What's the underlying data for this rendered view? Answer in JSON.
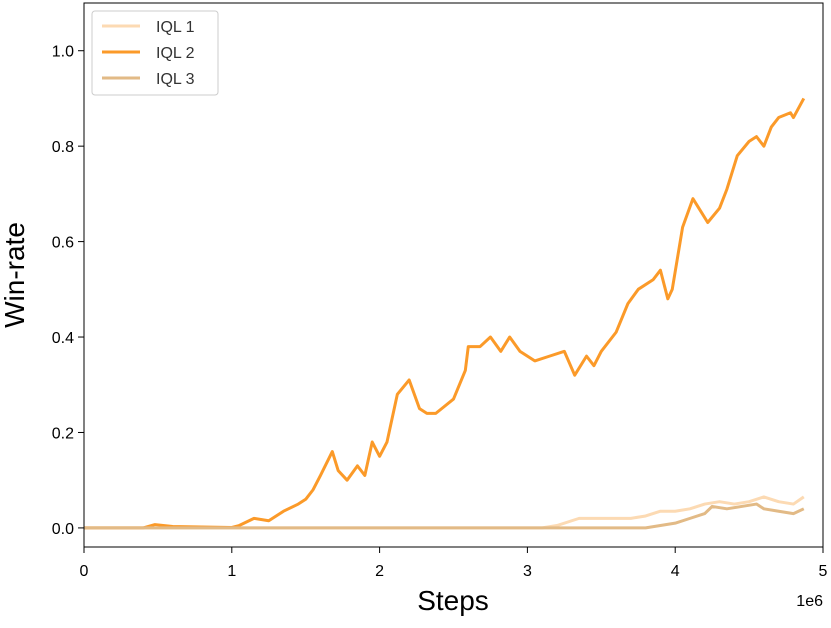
{
  "chart_data": {
    "type": "line",
    "xlabel": "Steps",
    "ylabel": "Win-rate",
    "x_offset_label": "1e6",
    "xlim": [
      0,
      5
    ],
    "ylim": [
      -0.04,
      1.1
    ],
    "xticks": [
      0,
      1,
      2,
      3,
      4,
      5
    ],
    "yticks": [
      {
        "value": 0,
        "label": "0.0"
      },
      0.2,
      0.4,
      0.6,
      0.8,
      {
        "value": 1,
        "label": "1.0"
      }
    ],
    "legend": "upper left",
    "grid": false,
    "series": [
      {
        "name": "IQL 1",
        "color": "#fcdab3",
        "x": [
          0,
          3.1,
          3.2,
          3.3,
          3.35,
          3.5,
          3.6,
          3.7,
          3.8,
          3.9,
          4.0,
          4.1,
          4.2,
          4.3,
          4.4,
          4.5,
          4.6,
          4.7,
          4.8,
          4.87
        ],
        "values": [
          0,
          0,
          0.005,
          0.015,
          0.02,
          0.02,
          0.02,
          0.02,
          0.025,
          0.035,
          0.035,
          0.04,
          0.05,
          0.055,
          0.05,
          0.055,
          0.065,
          0.055,
          0.05,
          0.065
        ]
      },
      {
        "name": "IQL 2",
        "color": "#fb9a29",
        "x": [
          0,
          0.4,
          0.48,
          0.6,
          1.0,
          1.05,
          1.15,
          1.25,
          1.35,
          1.45,
          1.5,
          1.55,
          1.6,
          1.68,
          1.72,
          1.78,
          1.85,
          1.9,
          1.95,
          2.0,
          2.05,
          2.12,
          2.2,
          2.27,
          2.32,
          2.38,
          2.42,
          2.5,
          2.58,
          2.6,
          2.68,
          2.75,
          2.82,
          2.88,
          2.95,
          3.05,
          3.15,
          3.25,
          3.32,
          3.4,
          3.45,
          3.5,
          3.6,
          3.68,
          3.75,
          3.85,
          3.9,
          3.95,
          3.98,
          4.05,
          4.12,
          4.18,
          4.22,
          4.3,
          4.35,
          4.42,
          4.5,
          4.55,
          4.6,
          4.65,
          4.7,
          4.78,
          4.8,
          4.87
        ],
        "values": [
          0,
          0,
          0.007,
          0.003,
          0.001,
          0.005,
          0.02,
          0.015,
          0.035,
          0.05,
          0.06,
          0.08,
          0.11,
          0.16,
          0.12,
          0.1,
          0.13,
          0.11,
          0.18,
          0.15,
          0.18,
          0.28,
          0.31,
          0.25,
          0.24,
          0.24,
          0.25,
          0.27,
          0.33,
          0.38,
          0.38,
          0.4,
          0.37,
          0.4,
          0.37,
          0.35,
          0.36,
          0.37,
          0.32,
          0.36,
          0.34,
          0.37,
          0.41,
          0.47,
          0.5,
          0.52,
          0.54,
          0.48,
          0.5,
          0.63,
          0.69,
          0.66,
          0.64,
          0.67,
          0.71,
          0.78,
          0.81,
          0.82,
          0.8,
          0.84,
          0.86,
          0.87,
          0.86,
          0.9
        ]
      },
      {
        "name": "IQL 3",
        "color": "#e2ba86",
        "x": [
          0,
          3.8,
          3.9,
          4.0,
          4.1,
          4.2,
          4.25,
          4.35,
          4.45,
          4.55,
          4.6,
          4.7,
          4.8,
          4.87
        ],
        "values": [
          0,
          0,
          0.005,
          0.01,
          0.02,
          0.03,
          0.045,
          0.04,
          0.045,
          0.05,
          0.04,
          0.035,
          0.03,
          0.04
        ]
      }
    ]
  }
}
